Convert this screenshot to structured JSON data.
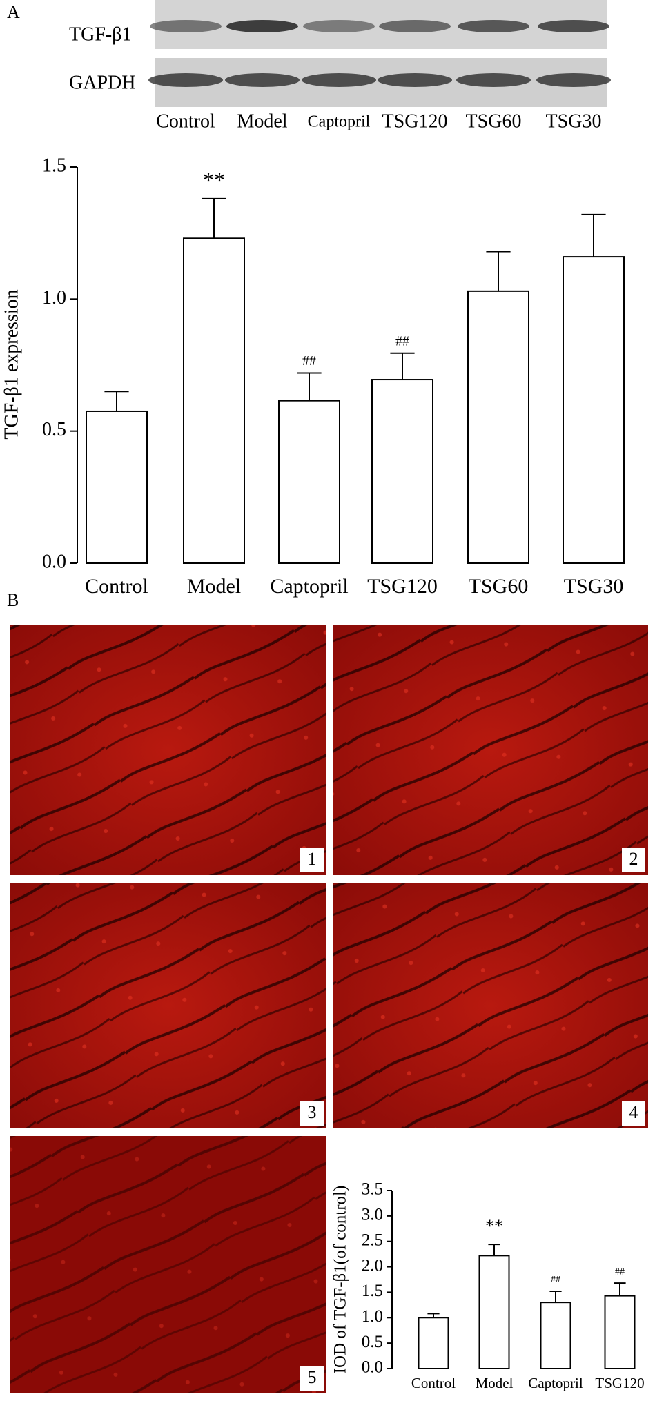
{
  "panel_a": {
    "label": "A",
    "blot_rows": [
      "TGF-β1",
      "GAPDH"
    ],
    "blot_lanes": [
      "Control",
      "Model",
      "Captopril",
      "TSG120",
      "TSG60",
      "TSG30"
    ]
  },
  "panel_b": {
    "label": "B",
    "images": [
      "1",
      "2",
      "3",
      "4",
      "5"
    ]
  },
  "chart_data": [
    {
      "type": "bar",
      "ylabel": "TGF-β1 expression",
      "categories": [
        "Control",
        "Model",
        "Captopril",
        "TSG120",
        "TSG60",
        "TSG30"
      ],
      "values": [
        0.575,
        1.23,
        0.615,
        0.695,
        1.03,
        1.16
      ],
      "errors": [
        0.075,
        0.15,
        0.105,
        0.1,
        0.15,
        0.16
      ],
      "annotations": [
        null,
        "**",
        "##",
        "##",
        null,
        null
      ],
      "color": "#ffffff",
      "ylim": [
        0,
        1.5
      ],
      "yticks": [
        {
          "value": 0,
          "label": "0.0"
        },
        0.5,
        {
          "value": 1,
          "label": "1.0"
        },
        1.5
      ]
    },
    {
      "type": "bar",
      "ylabel": "IOD of TGF-β1(of control)",
      "categories": [
        "Control",
        "Model",
        "Captopril",
        "TSG120"
      ],
      "values": [
        1.0,
        2.22,
        1.3,
        1.43
      ],
      "errors": [
        0.08,
        0.22,
        0.22,
        0.25
      ],
      "annotations": [
        null,
        "**",
        "##",
        "##"
      ],
      "color": "#ffffff",
      "ylim": [
        0,
        3.5
      ],
      "yticks": [
        {
          "value": 0,
          "label": "0.0"
        },
        0.5,
        {
          "value": 1,
          "label": "1.0"
        },
        1.5,
        {
          "value": 2,
          "label": "2.0"
        },
        2.5,
        {
          "value": 3,
          "label": "3.0"
        },
        3.5
      ]
    }
  ]
}
